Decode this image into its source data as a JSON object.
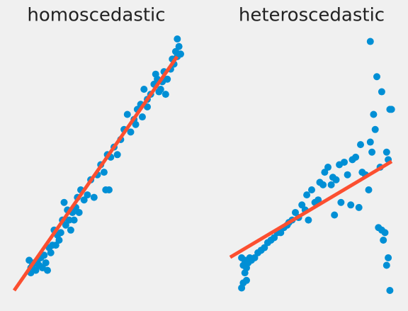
{
  "chart_data": [
    {
      "type": "scatter",
      "title": "homoscedastic",
      "xlim": [
        0,
        100
      ],
      "ylim": [
        0,
        100
      ],
      "color": "#008fd5",
      "x": [
        9,
        10,
        11,
        10,
        12,
        13,
        14,
        15,
        16,
        17,
        18,
        19,
        20,
        21,
        22,
        23,
        24,
        25,
        26,
        27,
        28,
        29,
        30,
        31,
        32,
        33,
        34,
        35,
        36,
        37,
        38,
        39,
        40,
        42,
        44,
        46,
        48,
        50,
        52,
        54,
        56,
        58,
        55,
        57,
        60,
        62,
        64,
        66,
        68,
        70,
        72,
        74,
        76,
        78,
        80,
        82,
        84,
        86,
        88,
        90,
        92,
        94,
        95,
        96,
        97,
        98,
        99,
        100,
        98,
        85,
        87,
        89,
        91,
        80,
        77,
        73
      ],
      "values": [
        12,
        9,
        10,
        7,
        11,
        8,
        12,
        10,
        13,
        9,
        14,
        11,
        8,
        17,
        15,
        18,
        24,
        18,
        22,
        20,
        23,
        28,
        35,
        26,
        32,
        28,
        24,
        31,
        28,
        33,
        37,
        31,
        40,
        36,
        38,
        44,
        37,
        46,
        50,
        47,
        54,
        53,
        40,
        40,
        57,
        54,
        60,
        64,
        70,
        63,
        68,
        72,
        74,
        80,
        76,
        78,
        82,
        84,
        80,
        87,
        84,
        88,
        92,
        90,
        95,
        100,
        97,
        94,
        93,
        86,
        79,
        83,
        78,
        73,
        69,
        66
      ],
      "fit": {
        "type": "line",
        "x": [
          0,
          97.9
        ],
        "values": [
          0,
          93
        ],
        "color": "#fc4f30"
      }
    },
    {
      "type": "scatter",
      "title": "heteroscedastic",
      "xlim": [
        0,
        100
      ],
      "ylim": [
        0,
        100
      ],
      "color": "#008fd5",
      "x": [
        7,
        8,
        9,
        10,
        9,
        8,
        7,
        10,
        11,
        12,
        13,
        15,
        17,
        19,
        21,
        23,
        25,
        27,
        29,
        31,
        33,
        35,
        36,
        38,
        40,
        42,
        44,
        46,
        47,
        48,
        50,
        52,
        54,
        55,
        57,
        58,
        60,
        62,
        63,
        64,
        65,
        67,
        68,
        70,
        72,
        74,
        75,
        77,
        79,
        80,
        81,
        83,
        85,
        86,
        87,
        88,
        89,
        90,
        91,
        92,
        93,
        94,
        95,
        96,
        97,
        86,
        99,
        98,
        96,
        97,
        98,
        93
      ],
      "values": [
        13,
        10,
        12,
        9,
        7,
        3,
        1,
        4,
        11,
        13,
        12,
        13,
        15,
        16,
        17,
        19,
        20,
        21,
        23,
        23,
        25,
        26,
        27,
        28,
        31,
        29,
        34,
        32,
        38,
        28,
        40,
        35,
        36,
        43,
        42,
        47,
        49,
        42,
        45,
        30,
        44,
        50,
        35,
        51,
        46,
        34,
        52,
        53,
        33,
        58,
        47,
        46,
        40,
        59,
        55,
        70,
        64,
        85,
        25,
        49,
        79,
        20,
        23,
        10,
        52,
        99,
        72,
        72,
        55,
        13,
        0,
        24
      ],
      "fit": {
        "type": "line",
        "x": [
          0,
          99.1
        ],
        "values": [
          13.2,
          51.3
        ],
        "color": "#fc4f30"
      }
    }
  ]
}
